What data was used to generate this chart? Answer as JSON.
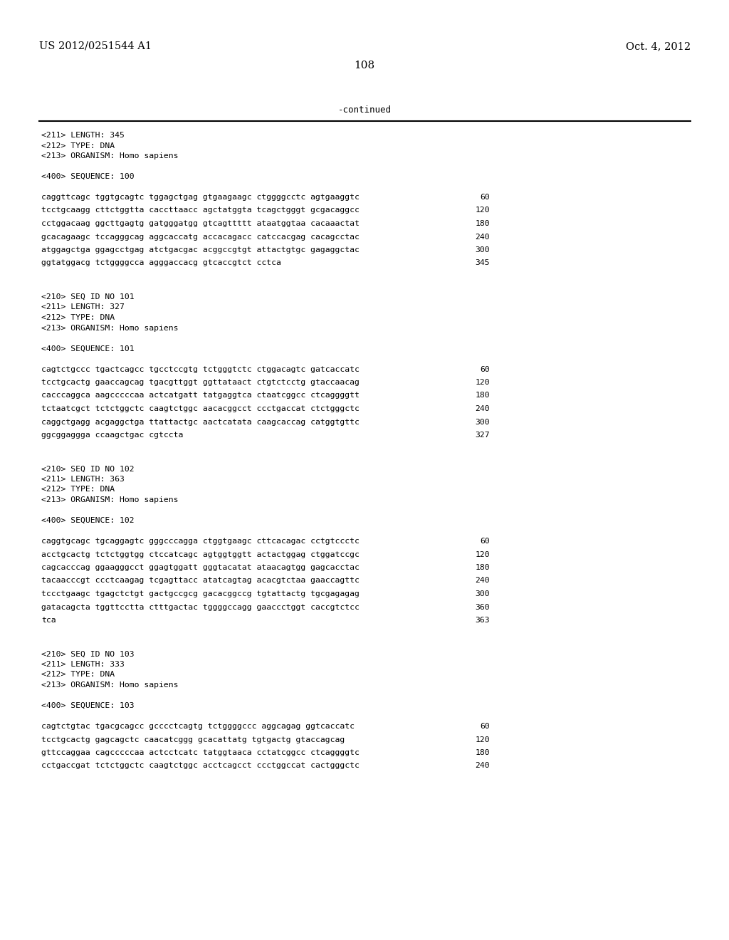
{
  "header_left": "US 2012/0251544 A1",
  "header_right": "Oct. 4, 2012",
  "page_number": "108",
  "continued_text": "-continued",
  "background_color": "#ffffff",
  "text_color": "#000000",
  "seq100_header": [
    "<211> LENGTH: 345",
    "<212> TYPE: DNA",
    "<213> ORGANISM: Homo sapiens"
  ],
  "seq100_label": "<400> SEQUENCE: 100",
  "seq100_lines": [
    {
      "seq": "caggttcagc tggtgcagtc tggagctgag gtgaagaagc ctggggcctc agtgaaggtc",
      "num": "60"
    },
    {
      "seq": "tcctgcaagg cttctggtta caccttaacc agctatggta tcagctgggt gcgacaggcc",
      "num": "120"
    },
    {
      "seq": "cctggacaag ggcttgagtg gatgggatgg gtcagttttt ataatggtaa cacaaactat",
      "num": "180"
    },
    {
      "seq": "gcacagaagc tccagggcag aggcaccatg accacagacc catccacgag cacagcctac",
      "num": "240"
    },
    {
      "seq": "atggagctga ggagcctgag atctgacgac acggccgtgt attactgtgc gagaggctac",
      "num": "300"
    },
    {
      "seq": "ggtatggacg tctggggcca agggaccacg gtcaccgtct cctca",
      "num": "345"
    }
  ],
  "seq101_header": [
    "<210> SEQ ID NO 101",
    "<211> LENGTH: 327",
    "<212> TYPE: DNA",
    "<213> ORGANISM: Homo sapiens"
  ],
  "seq101_label": "<400> SEQUENCE: 101",
  "seq101_lines": [
    {
      "seq": "cagtctgccc tgactcagcc tgcctccgtg tctgggtctc ctggacagtc gatcaccatc",
      "num": "60"
    },
    {
      "seq": "tcctgcactg gaaccagcag tgacgttggt ggttataact ctgtctcctg gtaccaacag",
      "num": "120"
    },
    {
      "seq": "cacccaggca aagcccccaa actcatgatt tatgaggtca ctaatcggcc ctcaggggtt",
      "num": "180"
    },
    {
      "seq": "tctaatcgct tctctggctc caagtctggc aacacggcct ccctgaccat ctctgggctc",
      "num": "240"
    },
    {
      "seq": "caggctgagg acgaggctga ttattactgc aactcatata caagcaccag catggtgttc",
      "num": "300"
    },
    {
      "seq": "ggcggaggga ccaagctgac cgtccta",
      "num": "327"
    }
  ],
  "seq102_header": [
    "<210> SEQ ID NO 102",
    "<211> LENGTH: 363",
    "<212> TYPE: DNA",
    "<213> ORGANISM: Homo sapiens"
  ],
  "seq102_label": "<400> SEQUENCE: 102",
  "seq102_lines": [
    {
      "seq": "caggtgcagc tgcaggagtc gggcccagga ctggtgaagc cttcacagac cctgtccctc",
      "num": "60"
    },
    {
      "seq": "acctgcactg tctctggtgg ctccatcagc agtggtggtt actactggag ctggatccgc",
      "num": "120"
    },
    {
      "seq": "cagcacccag ggaagggcct ggagtggatt gggtacatat ataacagtgg gagcacctac",
      "num": "180"
    },
    {
      "seq": "tacaacccgt ccctcaagag tcgagttacc atatcagtag acacgtctaa gaaccagttc",
      "num": "240"
    },
    {
      "seq": "tccctgaagc tgagctctgt gactgccgcg gacacggccg tgtattactg tgcgagagag",
      "num": "300"
    },
    {
      "seq": "gatacagcta tggttcctta ctttgactac tggggccagg gaaccctggt caccgtctcc",
      "num": "360"
    },
    {
      "seq": "tca",
      "num": "363"
    }
  ],
  "seq103_header": [
    "<210> SEQ ID NO 103",
    "<211> LENGTH: 333",
    "<212> TYPE: DNA",
    "<213> ORGANISM: Homo sapiens"
  ],
  "seq103_label": "<400> SEQUENCE: 103",
  "seq103_lines": [
    {
      "seq": "cagtctgtac tgacgcagcc gcccctcagtg tctggggccc aggcagag ggtcaccatc",
      "num": "60"
    },
    {
      "seq": "tcctgcactg gagcagctc caacatcggg gcacattatg tgtgactg gtaccagcag",
      "num": "120"
    },
    {
      "seq": "gttccaggaa cagcccccaa actcctcatc tatggtaaca cctatcggcc ctcaggggtc",
      "num": "180"
    },
    {
      "seq": "cctgaccgat tctctggctc caagtctggc acctcagcct ccctggccat cactgggctc",
      "num": "240"
    }
  ]
}
